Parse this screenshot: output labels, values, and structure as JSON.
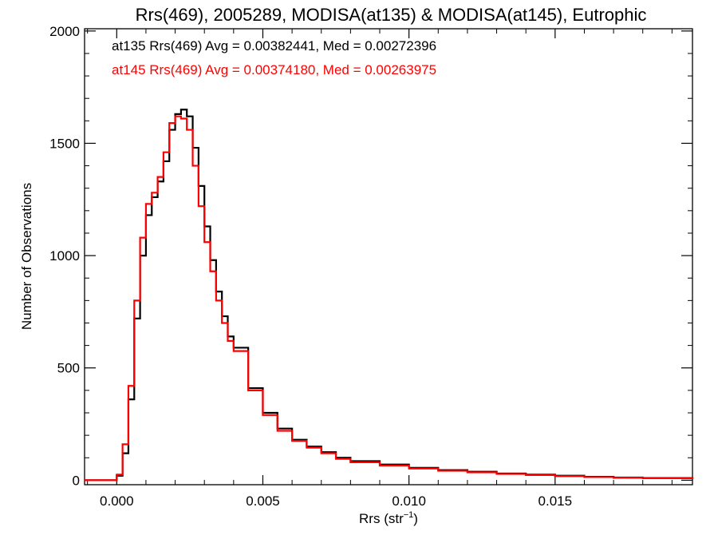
{
  "chart_data": {
    "type": "line",
    "title": "Rrs(469), 2005289, MODISA(at135) & MODISA(at145), Eutrophic",
    "xlabel_main": "Rrs (str",
    "xlabel_sup": "−1",
    "xlabel_close": ")",
    "ylabel": "Number of Observations",
    "xlim": [
      -0.0011,
      0.0197
    ],
    "ylim": [
      -20,
      2010
    ],
    "x_ticks": [
      0.0,
      0.005,
      0.01,
      0.015
    ],
    "x_tick_labels": [
      "0.000",
      "0.005",
      "0.010",
      "0.015"
    ],
    "y_ticks": [
      0,
      500,
      1000,
      1500,
      2000
    ],
    "y_tick_labels": [
      "0",
      "500",
      "1000",
      "1500",
      "2000"
    ],
    "grid": false,
    "annotations": [
      {
        "text": "at135 Rrs(469) Avg = 0.00382441, Med = 0.00272396",
        "color": "#000000"
      },
      {
        "text": "at145 Rrs(469) Avg = 0.00374180, Med = 0.00263975",
        "color": "#ff0000"
      }
    ],
    "series": [
      {
        "color": "#000000",
        "x": [
          -0.0011,
          -0.0001,
          0.0,
          0.0002,
          0.0004,
          0.0006,
          0.0008,
          0.001,
          0.0012,
          0.0014,
          0.0016,
          0.0018,
          0.002,
          0.0022,
          0.0024,
          0.0026,
          0.0028,
          0.003,
          0.0032,
          0.0034,
          0.0036,
          0.0038,
          0.004,
          0.0045,
          0.005,
          0.0055,
          0.006,
          0.0065,
          0.007,
          0.0075,
          0.008,
          0.009,
          0.01,
          0.011,
          0.012,
          0.013,
          0.014,
          0.015,
          0.016,
          0.017,
          0.018,
          0.0197
        ],
        "values": [
          0,
          0,
          20,
          120,
          360,
          720,
          1000,
          1180,
          1260,
          1330,
          1420,
          1560,
          1630,
          1650,
          1620,
          1480,
          1310,
          1130,
          980,
          840,
          730,
          640,
          590,
          410,
          300,
          230,
          180,
          150,
          125,
          100,
          85,
          70,
          55,
          45,
          38,
          30,
          25,
          20,
          15,
          12,
          10,
          5
        ]
      },
      {
        "color": "#ff0000",
        "x": [
          -0.0011,
          -0.0001,
          0.0,
          0.0002,
          0.0004,
          0.0006,
          0.0008,
          0.001,
          0.0012,
          0.0014,
          0.0016,
          0.0018,
          0.002,
          0.0022,
          0.0024,
          0.0026,
          0.0028,
          0.003,
          0.0032,
          0.0034,
          0.0036,
          0.0038,
          0.004,
          0.0045,
          0.005,
          0.0055,
          0.006,
          0.0065,
          0.007,
          0.0075,
          0.008,
          0.009,
          0.01,
          0.011,
          0.012,
          0.013,
          0.014,
          0.015,
          0.016,
          0.017,
          0.018,
          0.0197
        ],
        "values": [
          0,
          0,
          25,
          160,
          420,
          800,
          1080,
          1230,
          1280,
          1350,
          1460,
          1590,
          1620,
          1610,
          1560,
          1400,
          1220,
          1060,
          930,
          800,
          700,
          620,
          575,
          400,
          290,
          220,
          175,
          145,
          120,
          95,
          80,
          65,
          52,
          42,
          35,
          28,
          23,
          18,
          14,
          11,
          9,
          5
        ]
      }
    ]
  }
}
